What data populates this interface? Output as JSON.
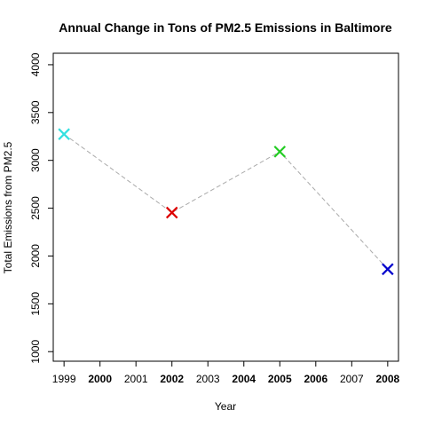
{
  "chart_data": {
    "type": "scatter",
    "title": "Annual Change in Tons of PM2.5 Emissions in Baltimore",
    "xlabel": "Year",
    "ylabel": "Total Emissions from PM2.5",
    "xlim": [
      1998.7,
      2008.3
    ],
    "ylim": [
      900,
      4120
    ],
    "x_ticks": [
      1999,
      2000,
      2001,
      2002,
      2003,
      2004,
      2005,
      2006,
      2007,
      2008
    ],
    "x_tick_labels": [
      "1999",
      "2000",
      "2001",
      "2002",
      "2003",
      "2004",
      "2005",
      "2006",
      "2007",
      "2008"
    ],
    "x_bold_ticks": [
      2000,
      2002,
      2004,
      2005,
      2006,
      2008
    ],
    "y_ticks": [
      1000,
      1500,
      2000,
      2500,
      3000,
      3500,
      4000
    ],
    "y_tick_labels": [
      "1000",
      "1500",
      "2000",
      "2500",
      "3000",
      "3500",
      "4000"
    ],
    "points": [
      {
        "x": 1999,
        "y": 3274,
        "color": "#33e0e0"
      },
      {
        "x": 2002,
        "y": 2454,
        "color": "#dd0000"
      },
      {
        "x": 2005,
        "y": 3091,
        "color": "#22cc22"
      },
      {
        "x": 2008,
        "y": 1862,
        "color": "#0000cc"
      }
    ],
    "line": {
      "style": "dashed",
      "color": "#aaaaaa"
    },
    "marker": "x",
    "grid": false,
    "legend": false
  }
}
